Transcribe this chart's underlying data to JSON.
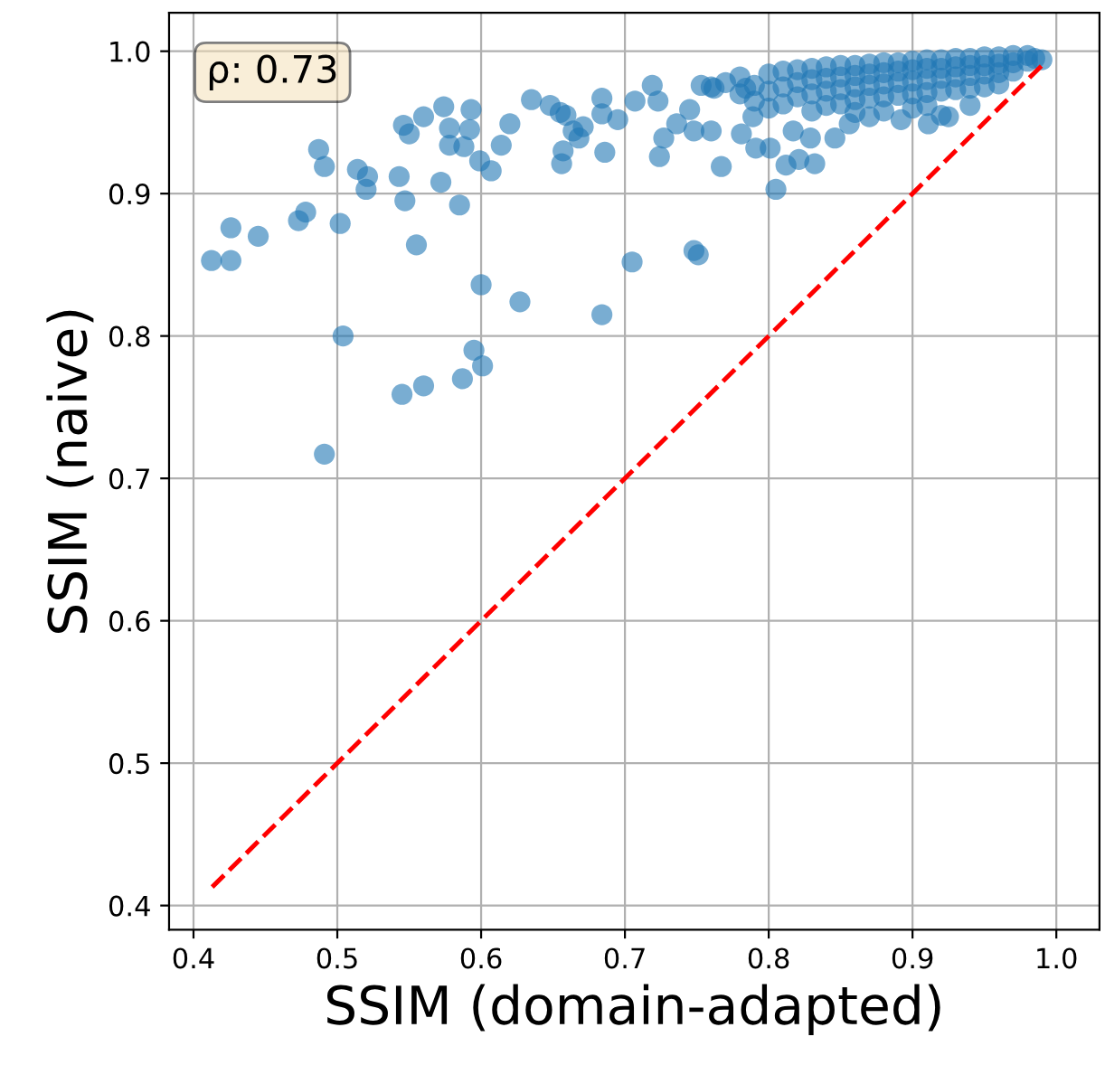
{
  "chart_data": {
    "type": "scatter",
    "xlabel": "SSIM (domain-adapted)",
    "ylabel": "SSIM (naive)",
    "annotations": [
      "ρ: 0.73"
    ],
    "xlim": [
      0.383,
      1.03
    ],
    "ylim": [
      0.383,
      1.027
    ],
    "xticks": [
      {
        "value": 0.4,
        "label": "0.4"
      },
      {
        "value": 0.5,
        "label": "0.5"
      },
      {
        "value": 0.6,
        "label": "0.6"
      },
      {
        "value": 0.7,
        "label": "0.7"
      },
      {
        "value": 0.8,
        "label": "0.8"
      },
      {
        "value": 0.9,
        "label": "0.9"
      },
      {
        "value": 1.0,
        "label": "1.0"
      }
    ],
    "yticks": [
      {
        "value": 0.4,
        "label": "0.4"
      },
      {
        "value": 0.5,
        "label": "0.5"
      },
      {
        "value": 0.6,
        "label": "0.6"
      },
      {
        "value": 0.7,
        "label": "0.7"
      },
      {
        "value": 0.8,
        "label": "0.8"
      },
      {
        "value": 0.9,
        "label": "0.9"
      },
      {
        "value": 1.0,
        "label": "1.0"
      }
    ],
    "grid": true,
    "series": [
      {
        "color": "#1f77b4",
        "marker": "circle",
        "x": [
          0.4125,
          0.426,
          0.426,
          0.445,
          0.473,
          0.478,
          0.487,
          0.491,
          0.491,
          0.502,
          0.504,
          0.514,
          0.521,
          0.52,
          0.543,
          0.546,
          0.55,
          0.547,
          0.545,
          0.555,
          0.56,
          0.56,
          0.574,
          0.572,
          0.578,
          0.578,
          0.585,
          0.588,
          0.592,
          0.593,
          0.587,
          0.595,
          0.599,
          0.6,
          0.601,
          0.607,
          0.614,
          0.62,
          0.627,
          0.635,
          0.648,
          0.655,
          0.659,
          0.657,
          0.656,
          0.664,
          0.668,
          0.671,
          0.684,
          0.684,
          0.686,
          0.684,
          0.695,
          0.705,
          0.707,
          0.719,
          0.723,
          0.724,
          0.727,
          0.736,
          0.745,
          0.748,
          0.751,
          0.748,
          0.76,
          0.767,
          0.753,
          0.762,
          0.784,
          0.781,
          0.791,
          0.801,
          0.789,
          0.805,
          0.812,
          0.821,
          0.832,
          0.817,
          0.829,
          0.846,
          0.856,
          0.87,
          0.892,
          0.911,
          0.925,
          0.76,
          0.77,
          0.78,
          0.78,
          0.79,
          0.79,
          0.8,
          0.8,
          0.8,
          0.81,
          0.81,
          0.81,
          0.82,
          0.82,
          0.82,
          0.83,
          0.83,
          0.83,
          0.83,
          0.84,
          0.84,
          0.84,
          0.84,
          0.85,
          0.85,
          0.85,
          0.85,
          0.86,
          0.86,
          0.86,
          0.86,
          0.86,
          0.87,
          0.87,
          0.87,
          0.87,
          0.88,
          0.88,
          0.88,
          0.88,
          0.88,
          0.89,
          0.89,
          0.89,
          0.89,
          0.9,
          0.9,
          0.9,
          0.9,
          0.9,
          0.91,
          0.91,
          0.91,
          0.91,
          0.91,
          0.92,
          0.92,
          0.92,
          0.92,
          0.92,
          0.93,
          0.93,
          0.93,
          0.93,
          0.94,
          0.94,
          0.94,
          0.94,
          0.94,
          0.95,
          0.95,
          0.95,
          0.95,
          0.96,
          0.96,
          0.96,
          0.96,
          0.97,
          0.97,
          0.97,
          0.98,
          0.98,
          0.985,
          0.99
        ],
        "values": [
          0.853,
          0.853,
          0.876,
          0.87,
          0.881,
          0.887,
          0.931,
          0.919,
          0.717,
          0.879,
          0.8,
          0.917,
          0.912,
          0.903,
          0.912,
          0.948,
          0.942,
          0.895,
          0.759,
          0.864,
          0.954,
          0.765,
          0.961,
          0.908,
          0.946,
          0.934,
          0.892,
          0.933,
          0.945,
          0.959,
          0.77,
          0.79,
          0.923,
          0.836,
          0.779,
          0.916,
          0.934,
          0.949,
          0.824,
          0.966,
          0.962,
          0.957,
          0.955,
          0.93,
          0.921,
          0.944,
          0.939,
          0.947,
          0.967,
          0.956,
          0.929,
          0.815,
          0.952,
          0.852,
          0.965,
          0.976,
          0.965,
          0.926,
          0.939,
          0.949,
          0.959,
          0.86,
          0.857,
          0.944,
          0.944,
          0.919,
          0.976,
          0.974,
          0.974,
          0.942,
          0.932,
          0.932,
          0.954,
          0.903,
          0.92,
          0.924,
          0.921,
          0.944,
          0.939,
          0.939,
          0.949,
          0.954,
          0.952,
          0.949,
          0.954,
          0.975,
          0.978,
          0.97,
          0.982,
          0.976,
          0.965,
          0.984,
          0.972,
          0.96,
          0.986,
          0.975,
          0.963,
          0.987,
          0.978,
          0.968,
          0.988,
          0.98,
          0.97,
          0.958,
          0.989,
          0.981,
          0.972,
          0.962,
          0.99,
          0.982,
          0.973,
          0.963,
          0.99,
          0.983,
          0.975,
          0.966,
          0.957,
          0.991,
          0.984,
          0.976,
          0.967,
          0.992,
          0.985,
          0.977,
          0.968,
          0.958,
          0.992,
          0.986,
          0.978,
          0.969,
          0.993,
          0.987,
          0.979,
          0.97,
          0.96,
          0.994,
          0.988,
          0.98,
          0.971,
          0.962,
          0.994,
          0.988,
          0.981,
          0.972,
          0.955,
          0.995,
          0.989,
          0.982,
          0.973,
          0.995,
          0.99,
          0.983,
          0.974,
          0.962,
          0.996,
          0.99,
          0.984,
          0.975,
          0.996,
          0.991,
          0.985,
          0.977,
          0.997,
          0.992,
          0.986,
          0.997,
          0.993,
          0.995,
          0.994
        ]
      },
      {
        "type": "line",
        "color": "#ff0000",
        "line_style": "dashed",
        "marker": "none",
        "x": [
          0.413,
          0.993
        ],
        "values": [
          0.413,
          0.993
        ]
      }
    ]
  }
}
